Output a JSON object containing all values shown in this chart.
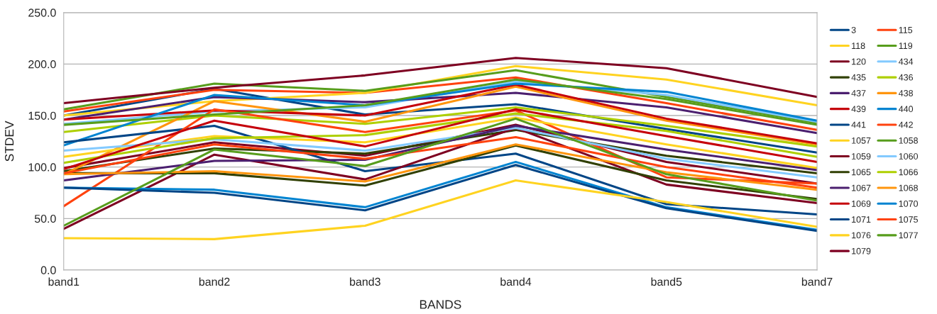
{
  "chart_data": {
    "type": "line",
    "xlabel": "BANDS",
    "ylabel": "STDEV",
    "categories": [
      "band1",
      "band2",
      "band3",
      "band4",
      "band5",
      "band7"
    ],
    "ylim": [
      0,
      250
    ],
    "yticks": [
      {
        "value": 0,
        "label": "0.0"
      },
      {
        "value": 50,
        "label": "50.0"
      },
      {
        "value": 100,
        "label": "100.0"
      },
      {
        "value": 150,
        "label": "150.0"
      },
      {
        "value": 200,
        "label": "200.0"
      },
      {
        "value": 250,
        "label": "250.0"
      }
    ],
    "grid": "y",
    "legend": "right",
    "marker": "none",
    "line_style": "solid",
    "series": [
      {
        "name": "3",
        "color": "#004586",
        "values": [
          150,
          176,
          151,
          161,
          137,
          114
        ]
      },
      {
        "name": "115",
        "color": "#ff420e",
        "values": [
          154,
          175,
          172,
          187,
          162,
          136
        ]
      },
      {
        "name": "118",
        "color": "#ffd320",
        "values": [
          150,
          164,
          172,
          198,
          185,
          160
        ]
      },
      {
        "name": "119",
        "color": "#579d1c",
        "values": [
          156,
          181,
          174,
          194,
          168,
          143
        ]
      },
      {
        "name": "120",
        "color": "#7e0021",
        "values": [
          99,
          124,
          111,
          141,
          105,
          84
        ]
      },
      {
        "name": "434",
        "color": "#83caff",
        "values": [
          142,
          154,
          158,
          183,
          170,
          144
        ]
      },
      {
        "name": "435",
        "color": "#314004",
        "values": [
          96,
          118,
          113,
          136,
          111,
          94
        ]
      },
      {
        "name": "436",
        "color": "#aecf00",
        "values": [
          134,
          150,
          142,
          158,
          140,
          120
        ]
      },
      {
        "name": "437",
        "color": "#4b1f6f",
        "values": [
          146,
          168,
          163,
          172,
          158,
          133
        ]
      },
      {
        "name": "438",
        "color": "#ff950e",
        "values": [
          93,
          164,
          144,
          178,
          145,
          122
        ]
      },
      {
        "name": "439",
        "color": "#c5000b",
        "values": [
          146,
          155,
          150,
          180,
          147,
          123
        ]
      },
      {
        "name": "440",
        "color": "#0084d1",
        "values": [
          121,
          170,
          160,
          181,
          173,
          145
        ]
      },
      {
        "name": "441",
        "color": "#004586",
        "values": [
          124,
          140,
          96,
          113,
          64,
          54
        ]
      },
      {
        "name": "442",
        "color": "#ff420e",
        "values": [
          62,
          156,
          134,
          155,
          90,
          84
        ]
      },
      {
        "name": "1057",
        "color": "#ffd320",
        "values": [
          110,
          130,
          124,
          148,
          122,
          99
        ]
      },
      {
        "name": "1058",
        "color": "#579d1c",
        "values": [
          141,
          151,
          160,
          185,
          166,
          141
        ]
      },
      {
        "name": "1059",
        "color": "#7e0021",
        "values": [
          40,
          112,
          88,
          138,
          83,
          65
        ]
      },
      {
        "name": "1060",
        "color": "#83caff",
        "values": [
          116,
          127,
          116,
          138,
          108,
          90
        ]
      },
      {
        "name": "1065",
        "color": "#314004",
        "values": [
          94,
          94,
          82,
          121,
          87,
          69
        ]
      },
      {
        "name": "1066",
        "color": "#aecf00",
        "values": [
          104,
          128,
          131,
          152,
          135,
          110
        ]
      },
      {
        "name": "1067",
        "color": "#4b1f6f",
        "values": [
          87,
          106,
          107,
          140,
          117,
          97
        ]
      },
      {
        "name": "1068",
        "color": "#ff950e",
        "values": [
          93,
          96,
          86,
          122,
          95,
          78
        ]
      },
      {
        "name": "1069",
        "color": "#c5000b",
        "values": [
          98,
          145,
          120,
          156,
          130,
          105
        ]
      },
      {
        "name": "1070",
        "color": "#0084d1",
        "values": [
          80,
          78,
          61,
          105,
          61,
          39
        ]
      },
      {
        "name": "1071",
        "color": "#004586",
        "values": [
          80,
          75,
          58,
          102,
          60,
          38
        ]
      },
      {
        "name": "1075",
        "color": "#ff420e",
        "values": [
          94,
          122,
          108,
          129,
          100,
          80
        ]
      },
      {
        "name": "1076",
        "color": "#ffd320",
        "values": [
          31,
          30,
          43,
          87,
          66,
          42
        ]
      },
      {
        "name": "1077",
        "color": "#579d1c",
        "values": [
          43,
          117,
          101,
          147,
          93,
          67.5
        ]
      },
      {
        "name": "1079",
        "color": "#7e0021",
        "values": [
          162,
          177,
          189,
          206,
          196,
          168
        ]
      }
    ]
  }
}
